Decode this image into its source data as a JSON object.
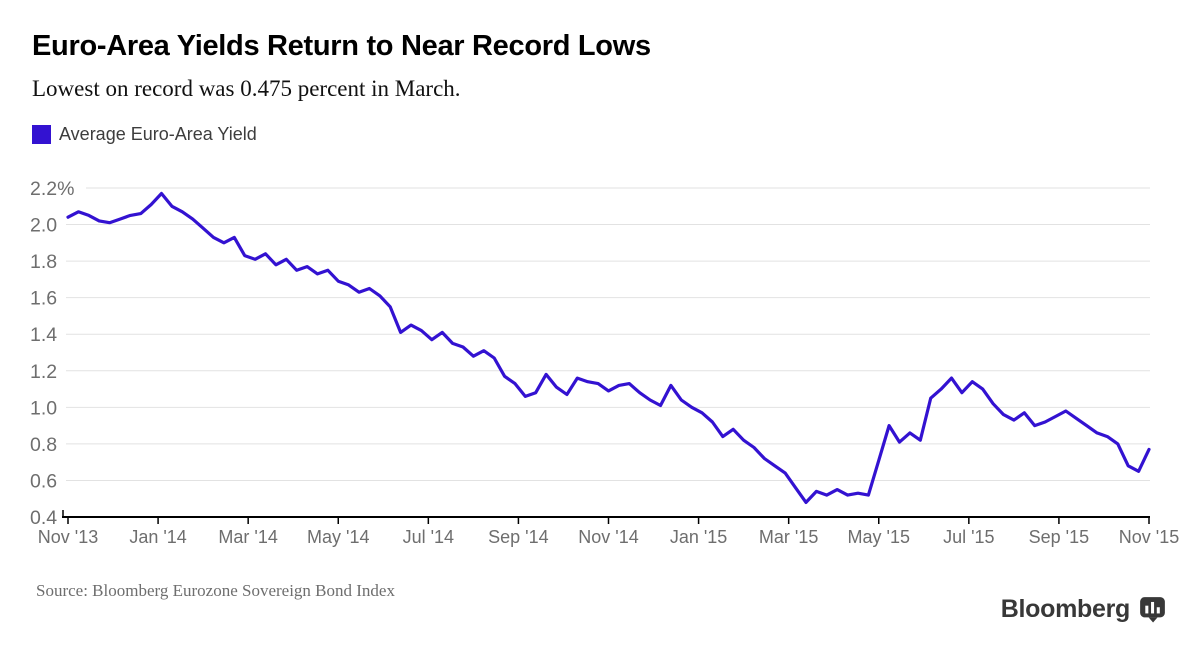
{
  "header": {
    "title": "Euro-Area Yields Return to Near Record Lows",
    "subtitle": "Lowest on record was 0.475 percent in March."
  },
  "legend": {
    "label": "Average Euro-Area Yield"
  },
  "chart_data": {
    "type": "line",
    "title": "Euro-Area Yields Return to Near Record Lows",
    "grid": "horizontal",
    "legend_position": "top-left",
    "accent_color": "#3312d1",
    "grid_color": "#e2e2e2",
    "axis_color": "#000000",
    "tick_text_color": "#6e6e6e",
    "ylim": [
      0.4,
      2.2
    ],
    "y_ticks": [
      {
        "label": "2.2%",
        "value": 2.2
      },
      {
        "label": "2.0",
        "value": 2.0
      },
      {
        "label": "1.8",
        "value": 1.8
      },
      {
        "label": "1.6",
        "value": 1.6
      },
      {
        "label": "1.4",
        "value": 1.4
      },
      {
        "label": "1.2",
        "value": 1.2
      },
      {
        "label": "1.0",
        "value": 1.0
      },
      {
        "label": "0.8",
        "value": 0.8
      },
      {
        "label": "0.6",
        "value": 0.6
      },
      {
        "label": "0.4",
        "value": 0.4
      }
    ],
    "x_tick_labels": [
      "Nov '13",
      "Jan '14",
      "Mar '14",
      "May '14",
      "Jul '14",
      "Sep '14",
      "Nov '14",
      "Jan '15",
      "Mar '15",
      "May '15",
      "Jul '15",
      "Sep '15",
      "Nov '15"
    ],
    "x_range": [
      "Nov 2013",
      "Nov 2015"
    ],
    "series": [
      {
        "name": "Average Euro-Area Yield",
        "unit": "percent",
        "sampling": "weekly",
        "record_low_note": 0.475,
        "values": [
          2.04,
          2.07,
          2.05,
          2.02,
          2.01,
          2.03,
          2.05,
          2.06,
          2.11,
          2.17,
          2.1,
          2.07,
          2.03,
          1.98,
          1.93,
          1.9,
          1.93,
          1.83,
          1.81,
          1.84,
          1.78,
          1.81,
          1.75,
          1.77,
          1.73,
          1.75,
          1.69,
          1.67,
          1.63,
          1.65,
          1.61,
          1.55,
          1.41,
          1.45,
          1.42,
          1.37,
          1.41,
          1.35,
          1.33,
          1.28,
          1.31,
          1.27,
          1.17,
          1.13,
          1.06,
          1.08,
          1.18,
          1.11,
          1.07,
          1.16,
          1.14,
          1.13,
          1.09,
          1.12,
          1.13,
          1.08,
          1.04,
          1.01,
          1.12,
          1.04,
          1.0,
          0.97,
          0.92,
          0.84,
          0.88,
          0.82,
          0.78,
          0.72,
          0.68,
          0.64,
          0.56,
          0.48,
          0.54,
          0.52,
          0.55,
          0.52,
          0.53,
          0.52,
          0.71,
          0.9,
          0.81,
          0.86,
          0.82,
          1.05,
          1.1,
          1.16,
          1.08,
          1.14,
          1.1,
          1.02,
          0.96,
          0.93,
          0.97,
          0.9,
          0.92,
          0.95,
          0.98,
          0.94,
          0.9,
          0.86,
          0.84,
          0.8,
          0.68,
          0.65,
          0.77
        ]
      }
    ]
  },
  "footer": {
    "source": "Source: Bloomberg Eurozone Sovereign Bond Index",
    "brand": "Bloomberg"
  }
}
